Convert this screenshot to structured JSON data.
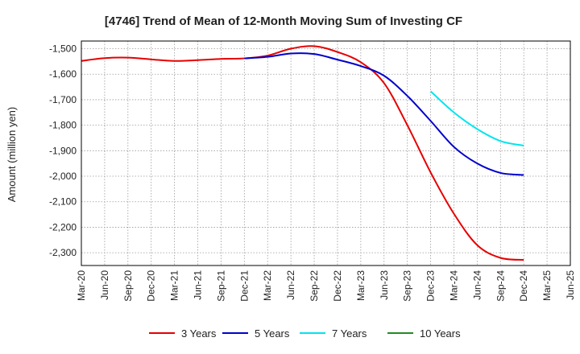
{
  "chart_data": {
    "type": "line",
    "title": "[4746]  Trend of Mean of 12-Month Moving Sum of Investing CF",
    "xlabel": "",
    "ylabel": "Amount (million yen)",
    "ylim": [
      -2350,
      -1470
    ],
    "yticks": [
      -1500,
      -1600,
      -1700,
      -1800,
      -1900,
      -2000,
      -2100,
      -2200,
      -2300
    ],
    "ytick_labels": [
      "-1,500",
      "-1,600",
      "-1,700",
      "-1,800",
      "-1,900",
      "-2,000",
      "-2,100",
      "-2,200",
      "-2,300"
    ],
    "categories": [
      "Mar-20",
      "Jun-20",
      "Sep-20",
      "Dec-20",
      "Mar-21",
      "Jun-21",
      "Sep-21",
      "Dec-21",
      "Mar-22",
      "Jun-22",
      "Sep-22",
      "Dec-22",
      "Mar-23",
      "Jun-23",
      "Sep-23",
      "Dec-23",
      "Mar-24",
      "Jun-24",
      "Sep-24",
      "Dec-24",
      "Mar-25",
      "Jun-25"
    ],
    "grid": true,
    "legend_position": "bottom",
    "series": [
      {
        "name": "3 Years",
        "color": "#e60000",
        "values": [
          -1548,
          -1537,
          -1535,
          -1542,
          -1548,
          -1545,
          -1540,
          -1538,
          -1527,
          -1500,
          -1490,
          -1513,
          -1553,
          -1635,
          -1800,
          -1985,
          -2147,
          -2270,
          -2320,
          -2328,
          null,
          null
        ]
      },
      {
        "name": "5 Years",
        "color": "#0000cc",
        "values": [
          null,
          null,
          null,
          null,
          null,
          null,
          null,
          -1538,
          -1532,
          -1519,
          -1521,
          -1543,
          -1568,
          -1606,
          -1685,
          -1783,
          -1885,
          -1950,
          -1987,
          -1995,
          null,
          null
        ]
      },
      {
        "name": "7 Years",
        "color": "#00e5ee",
        "values": [
          null,
          null,
          null,
          null,
          null,
          null,
          null,
          null,
          null,
          null,
          null,
          null,
          null,
          null,
          null,
          -1667,
          -1750,
          -1815,
          -1862,
          -1880,
          null,
          null
        ]
      },
      {
        "name": "10 Years",
        "color": "#228b22",
        "values": [
          null,
          null,
          null,
          null,
          null,
          null,
          null,
          null,
          null,
          null,
          null,
          null,
          null,
          null,
          null,
          null,
          null,
          null,
          null,
          null,
          null,
          null
        ]
      }
    ]
  }
}
